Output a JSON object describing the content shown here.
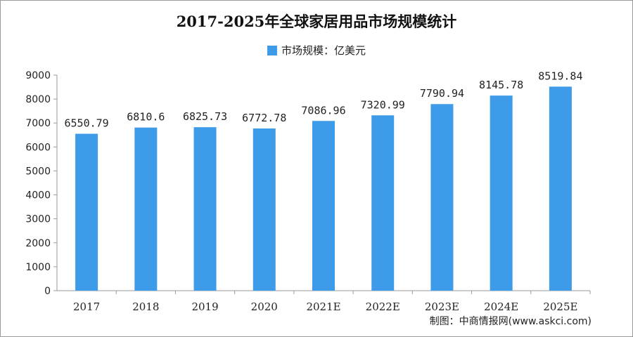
{
  "colors": {
    "bar": "#3d9be9",
    "axis": "#9a9a9a",
    "text": "#222222"
  },
  "source_text": "制图：中商情报网(www.askci.com)",
  "chart_data": {
    "type": "bar",
    "title": "2017-2025年全球家居用品市场规模统计",
    "categories": [
      "2017",
      "2018",
      "2019",
      "2020",
      "2021E",
      "2022E",
      "2023E",
      "2024E",
      "2025E"
    ],
    "series": [
      {
        "name": "市场规模：亿美元",
        "values": [
          6550.79,
          6810.6,
          6825.73,
          6772.78,
          7086.96,
          7320.99,
          7790.94,
          8145.78,
          8519.84
        ],
        "labels": [
          "6550.79",
          "6810.6",
          "6825.73",
          "6772.78",
          "7086.96",
          "7320.99",
          "7790.94",
          "8145.78",
          "8519.84"
        ]
      }
    ],
    "ylim": [
      0,
      9000
    ],
    "yticks": [
      0,
      1000,
      2000,
      3000,
      4000,
      5000,
      6000,
      7000,
      8000,
      9000
    ],
    "xlabel": "",
    "ylabel": "",
    "grid": false,
    "legend_position": "top-center"
  }
}
